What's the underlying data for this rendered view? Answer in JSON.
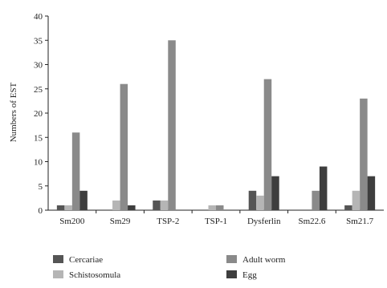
{
  "chart_data": {
    "type": "bar",
    "title": "",
    "xlabel": "",
    "ylabel": "Numbers of EST",
    "ylim": [
      0,
      40
    ],
    "yticks": [
      0,
      5,
      10,
      15,
      20,
      25,
      30,
      35,
      40
    ],
    "grid": false,
    "legend_position": "bottom",
    "categories": [
      "Sm200",
      "Sm29",
      "TSP-2",
      "TSP-1",
      "Dysferlin",
      "Sm22.6",
      "Sm21.7"
    ],
    "series": [
      {
        "name": "Cercariae",
        "color": "#555555",
        "values": [
          1,
          0,
          2,
          0,
          4,
          0,
          1
        ]
      },
      {
        "name": "Schistosomula",
        "color": "#b5b5b5",
        "values": [
          1,
          2,
          2,
          1,
          3,
          0,
          4
        ]
      },
      {
        "name": "Adult worm",
        "color": "#8a8a8a",
        "values": [
          16,
          26,
          35,
          1,
          27,
          4,
          23
        ]
      },
      {
        "name": "Egg",
        "color": "#3e3e3e",
        "values": [
          4,
          1,
          0,
          0,
          7,
          9,
          7
        ]
      }
    ]
  }
}
